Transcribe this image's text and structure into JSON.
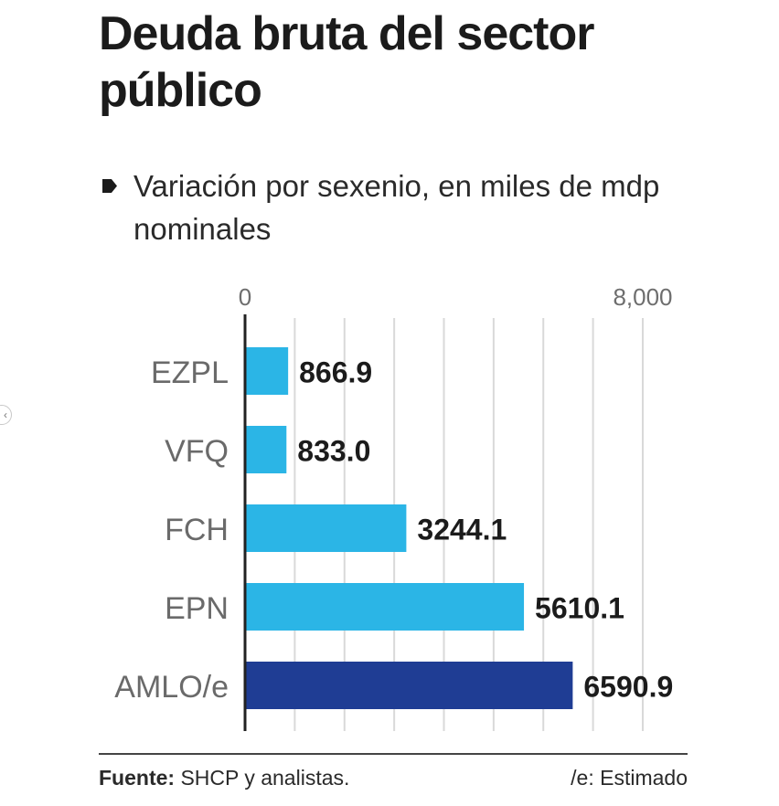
{
  "title": "Deuda bruta del sector público",
  "subtitle": "Variación por sexenio, en miles de mdp nominales",
  "footer": {
    "source_label": "Fuente:",
    "source_text": " SHCP y analistas.",
    "note": "/e: Estimado"
  },
  "colors": {
    "bar_default": "#2bb5e6",
    "bar_highlight": "#1f3d94",
    "grid": "#d9d9d9",
    "axis": "#222222"
  },
  "chart_data": {
    "type": "bar",
    "orientation": "horizontal",
    "title": "Deuda bruta del sector público",
    "subtitle": "Variación por sexenio, en miles de mdp nominales",
    "categories": [
      "EZPL",
      "VFQ",
      "FCH",
      "EPN",
      "AMLO/e"
    ],
    "values": [
      866.9,
      833.0,
      3244.1,
      5610.1,
      6590.9
    ],
    "value_labels": [
      "866.9",
      "833.0",
      "3244.1",
      "5610.1",
      "6590.9"
    ],
    "highlight_category": "AMLO/e",
    "xlim": [
      0,
      8000
    ],
    "x_tick_labels": [
      "0",
      "8,000"
    ],
    "grid": true
  }
}
